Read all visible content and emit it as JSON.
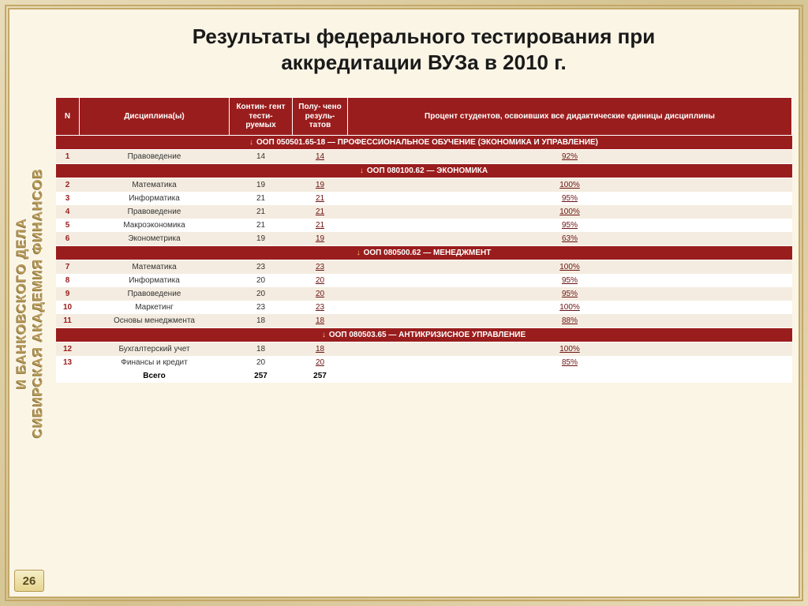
{
  "sidebar": {
    "line1": "СИБИРСКАЯ АКАДЕМИЯ ФИНАНСОВ",
    "line2": "И БАНКОВСКОГО ДЕЛА"
  },
  "pageNumber": "26",
  "title": {
    "line1": "Результаты федерального тестирования при",
    "line2": "аккредитации ВУЗа в 2010 г."
  },
  "headers": {
    "n": "N",
    "discipline": "Дисциплина(ы)",
    "contingent": "Контин-\nгент тести-\nруемых",
    "results": "Полу-\nчено\nрезуль-\nтатов",
    "percent": "Процент студентов, освоивших все дидактические единицы дисциплины"
  },
  "groups": [
    {
      "title": "ООП 050501.65-18 — ПРОФЕССИОНАЛЬНОЕ ОБУЧЕНИЕ (ЭКОНОМИКА И УПРАВЛЕНИЕ)",
      "rows": [
        {
          "n": "1",
          "disc": "Правоведение",
          "cont": "14",
          "res": "14",
          "pct": "92%"
        }
      ]
    },
    {
      "title": "ООП 080100.62 — ЭКОНОМИКА",
      "rows": [
        {
          "n": "2",
          "disc": "Математика",
          "cont": "19",
          "res": "19",
          "pct": "100%"
        },
        {
          "n": "3",
          "disc": "Информатика",
          "cont": "21",
          "res": "21",
          "pct": "95%"
        },
        {
          "n": "4",
          "disc": "Правоведение",
          "cont": "21",
          "res": "21",
          "pct": "100%"
        },
        {
          "n": "5",
          "disc": "Макроэкономика",
          "cont": "21",
          "res": "21",
          "pct": "95%"
        },
        {
          "n": "6",
          "disc": "Эконометрика",
          "cont": "19",
          "res": "19",
          "pct": "63%"
        }
      ]
    },
    {
      "title": "ООП 080500.62 — МЕНЕДЖМЕНТ",
      "rows": [
        {
          "n": "7",
          "disc": "Математика",
          "cont": "23",
          "res": "23",
          "pct": "100%"
        },
        {
          "n": "8",
          "disc": "Информатика",
          "cont": "20",
          "res": "20",
          "pct": "95%"
        },
        {
          "n": "9",
          "disc": "Правоведение",
          "cont": "20",
          "res": "20",
          "pct": "95%"
        },
        {
          "n": "10",
          "disc": "Маркетинг",
          "cont": "23",
          "res": "23",
          "pct": "100%"
        },
        {
          "n": "11",
          "disc": "Основы менеджмента",
          "cont": "18",
          "res": "18",
          "pct": "88%"
        }
      ]
    },
    {
      "title": "ООП 080503.65 — АНТИКРИЗИСНОЕ УПРАВЛЕНИЕ",
      "rows": [
        {
          "n": "12",
          "disc": "Бухгалтерский учет",
          "cont": "18",
          "res": "18",
          "pct": "100%"
        },
        {
          "n": "13",
          "disc": "Финансы и кредит",
          "cont": "20",
          "res": "20",
          "pct": "85%"
        }
      ]
    }
  ],
  "total": {
    "label": "Всего",
    "cont": "257",
    "res": "257"
  }
}
